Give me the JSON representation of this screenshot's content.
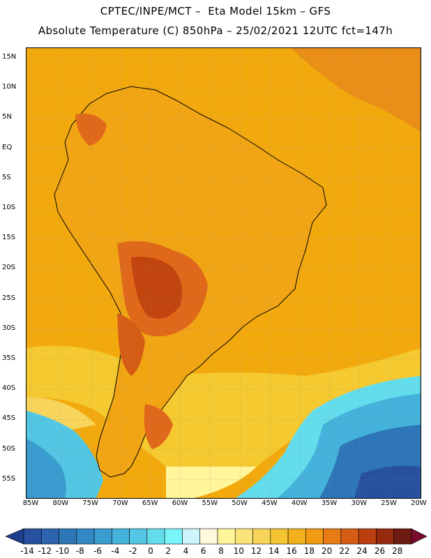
{
  "header": {
    "line1": "CPTEC/INPE/MCT –  Eta Model 15km – GFS",
    "line2": "Absolute Temperature (C) 850hPa – 25/02/2021 12UTC fct=147h"
  },
  "map": {
    "lat_labels": [
      "15N",
      "10N",
      "5N",
      "EQ",
      "5S",
      "10S",
      "15S",
      "20S",
      "25S",
      "30S",
      "35S",
      "40S",
      "45S",
      "50S",
      "55S"
    ],
    "lon_labels": [
      "85W",
      "80W",
      "75W",
      "70W",
      "65W",
      "60W",
      "55W",
      "50W",
      "45W",
      "40W",
      "35W",
      "30W",
      "25W",
      "20W"
    ],
    "colors": {
      "ocean_warm": "#f2a90e",
      "land_warm": "#f1a514",
      "hot": "#e0681a",
      "very_hot": "#c2440f",
      "cool_band": "#f5c930",
      "cold_ocean": "#33a6d8",
      "very_cold": "#2a6fb4"
    }
  },
  "legend": {
    "tick_labels": [
      "-14",
      "-12",
      "-10",
      "-8",
      "-6",
      "-4",
      "-2",
      "0",
      "2",
      "4",
      "6",
      "8",
      "10",
      "12",
      "14",
      "16",
      "18",
      "20",
      "22",
      "24",
      "26",
      "28"
    ],
    "colors": [
      "#1e3c8c",
      "#27519f",
      "#2d64ad",
      "#2f76b8",
      "#3488c4",
      "#3a9ccf",
      "#44b2da",
      "#52c6e2",
      "#63dcec",
      "#7af5fa",
      "#cdf5fb",
      "#fff8dd",
      "#fff59a",
      "#fbe37a",
      "#f7d55a",
      "#f4c432",
      "#f2b01a",
      "#f19a12",
      "#e97b16",
      "#d55c15",
      "#bb3f10",
      "#962a0f",
      "#6d1a10",
      "#7a0c2b"
    ]
  }
}
